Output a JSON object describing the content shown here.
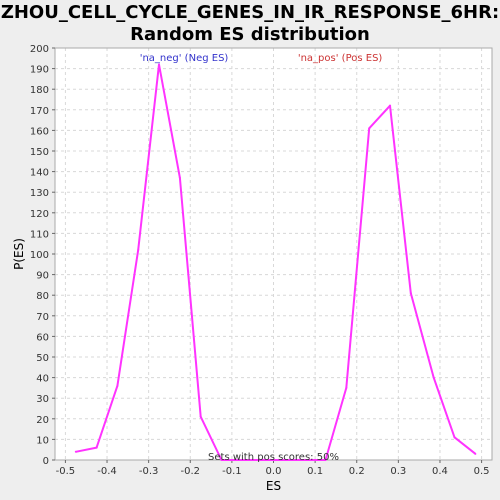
{
  "title_lines": [
    "ZHOU_CELL_CYCLE_GENES_IN_IR_RESPONSE_6HR:",
    "Random ES distribution"
  ],
  "chart_data": {
    "type": "line",
    "xlabel": "ES",
    "ylabel": "P(ES)",
    "xlim": [
      -0.525,
      0.525
    ],
    "ylim": [
      0,
      200
    ],
    "x_ticks": [
      -0.5,
      -0.4,
      -0.3,
      -0.2,
      -0.1,
      0.0,
      0.1,
      0.2,
      0.3,
      0.4,
      0.5
    ],
    "x_tick_labels": [
      "-0.5",
      "-0.4",
      "-0.3",
      "-0.2",
      "-0.1",
      "0.0",
      "0.1",
      "0.2",
      "0.3",
      "0.4",
      "0.5"
    ],
    "y_ticks": [
      0,
      10,
      20,
      30,
      40,
      50,
      60,
      70,
      80,
      90,
      100,
      110,
      120,
      130,
      140,
      150,
      160,
      170,
      180,
      190,
      200
    ],
    "grid": true,
    "line_color": "#ff33ff",
    "x": [
      -0.475,
      -0.425,
      -0.375,
      -0.325,
      -0.275,
      -0.225,
      -0.175,
      -0.125,
      -0.075,
      0.125,
      0.175,
      0.23,
      0.28,
      0.33,
      0.385,
      0.435,
      0.485
    ],
    "y": [
      4,
      6,
      36,
      102,
      192,
      137,
      21,
      0,
      0,
      0,
      35,
      161,
      172,
      81,
      40,
      11,
      3
    ],
    "annotations": [
      {
        "text": "'na_neg' (Neg ES)",
        "color": "#3333cc"
      },
      {
        "text": "'na_pos' (Pos ES)",
        "color": "#cc3333"
      },
      {
        "text": "Sets with pos scores: 50%",
        "color": "#333333"
      }
    ]
  }
}
